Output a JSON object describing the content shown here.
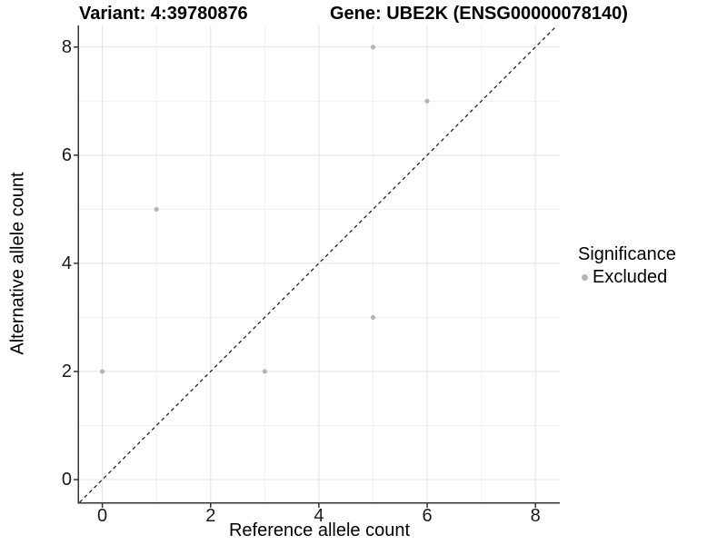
{
  "figure": {
    "title_variant": "Variant: 4:39780876",
    "title_gene": "Gene: UBE2K (ENSG00000078140)"
  },
  "chart_data": {
    "type": "scatter",
    "title": "Variant: 4:39780876   Gene: UBE2K (ENSG00000078140)",
    "xlabel": "Reference allele count",
    "ylabel": "Alternative allele count",
    "xlim": [
      -0.43,
      8.45
    ],
    "ylim": [
      -0.42,
      8.4
    ],
    "xticks": [
      0,
      2,
      4,
      6,
      8
    ],
    "yticks": [
      0,
      2,
      4,
      6,
      8
    ],
    "minor_xticks": [
      1,
      3,
      5,
      7
    ],
    "minor_yticks": [
      1,
      3,
      5,
      7
    ],
    "grid": true,
    "series": [
      {
        "name": "Excluded",
        "color": "#b4b4b4",
        "points": [
          [
            0,
            2
          ],
          [
            1,
            5
          ],
          [
            3,
            2
          ],
          [
            5,
            3
          ],
          [
            5,
            8
          ],
          [
            6,
            7
          ]
        ]
      }
    ],
    "reference_line": {
      "type": "identity",
      "style": "dashed",
      "color": "#141414"
    },
    "legend": {
      "title": "Significance",
      "position": "right",
      "entries": [
        {
          "label": "Excluded",
          "color": "#b4b4b4"
        }
      ]
    },
    "colors": {
      "axis_line": "#333333",
      "tick_mark": "#333333",
      "major_grid": "#e3e3e3",
      "minor_grid": "#f0f0f0",
      "background": "#ffffff"
    }
  }
}
